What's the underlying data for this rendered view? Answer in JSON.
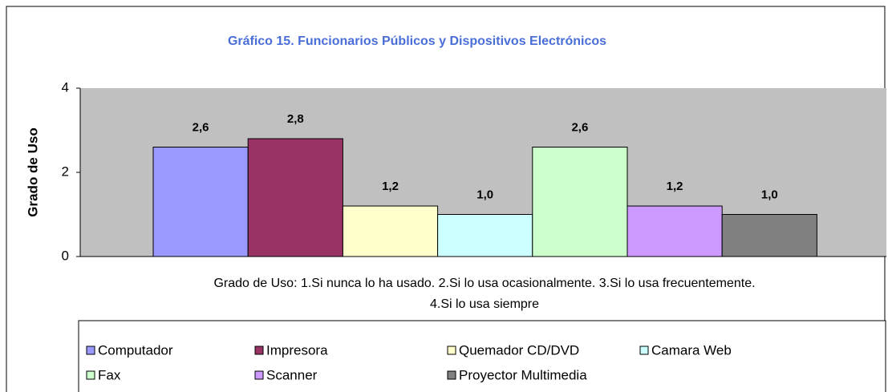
{
  "chart_data": {
    "type": "bar",
    "title": "Gráfico 15. Funcionarios Públicos y Dispositivos Electrónicos",
    "y_label": "Grado de Uso",
    "x_label": [
      "Grado de Uso:  1.Si nunca lo ha usado.  2.Si lo usa ocasionalmente.  3.Si lo usa frecuentemente.",
      "4.Si lo usa siempre"
    ],
    "series": [
      {
        "name": "Computador",
        "color": "#9999ff",
        "values": [
          2.6
        ],
        "value_labels": [
          "2,6"
        ]
      },
      {
        "name": "Impresora",
        "color": "#993366",
        "values": [
          2.8
        ],
        "value_labels": [
          "2,8"
        ]
      },
      {
        "name": "Quemador CD/DVD",
        "color": "#ffffcc",
        "values": [
          1.2
        ],
        "value_labels": [
          "1,2"
        ]
      },
      {
        "name": "Camara Web",
        "color": "#ccffff",
        "values": [
          1.0
        ],
        "value_labels": [
          "1,0"
        ]
      },
      {
        "name": "Fax",
        "color": "#ccffcc",
        "values": [
          2.6
        ],
        "value_labels": [
          "2,6"
        ]
      },
      {
        "name": "Scanner",
        "color": "#cc99ff",
        "values": [
          1.2
        ],
        "value_labels": [
          "1,2"
        ]
      },
      {
        "name": "Proyector Multimedia",
        "color": "#808080",
        "values": [
          1.0
        ],
        "value_labels": [
          "1,0"
        ]
      }
    ],
    "ylim": [
      0,
      4
    ],
    "yticks": [
      0,
      2,
      4
    ],
    "plot_background": "#c0c0c0"
  }
}
